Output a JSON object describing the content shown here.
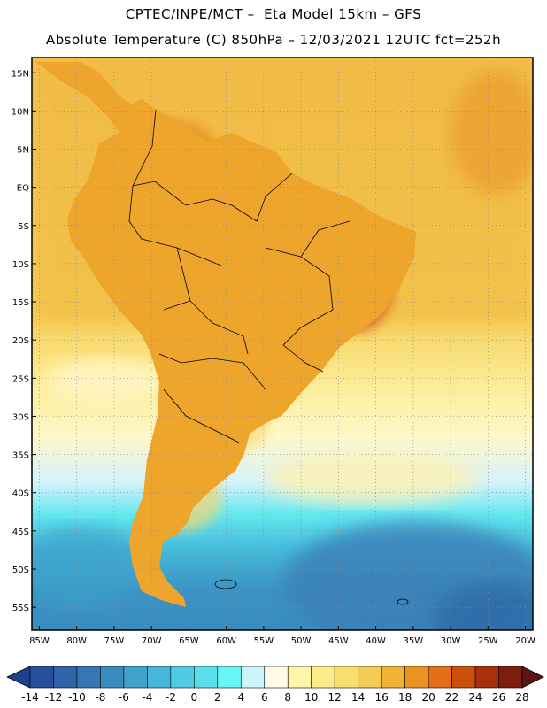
{
  "header": {
    "line1": "CPTEC/INPE/MCT –  Eta Model 15km – GFS",
    "line2": "Absolute Temperature (C) 850hPa – 12/03/2021 12UTC fct=252h"
  },
  "map": {
    "lon_range": [
      -86,
      -19
    ],
    "lat_range": [
      -58,
      17
    ],
    "lat_ticks": [
      "15N",
      "10N",
      "5N",
      "EQ",
      "5S",
      "10S",
      "15S",
      "20S",
      "25S",
      "30S",
      "35S",
      "40S",
      "45S",
      "50S",
      "55S"
    ],
    "lon_ticks": [
      "85W",
      "80W",
      "75W",
      "70W",
      "65W",
      "60W",
      "55W",
      "50W",
      "45W",
      "40W",
      "35W",
      "30W",
      "25W",
      "20W"
    ],
    "grid": true
  },
  "colorbar": {
    "labels": [
      "-14",
      "-12",
      "-10",
      "-8",
      "-6",
      "-4",
      "-2",
      "0",
      "2",
      "4",
      "6",
      "8",
      "10",
      "12",
      "14",
      "16",
      "18",
      "20",
      "22",
      "24",
      "26",
      "28"
    ],
    "colors": [
      "#1f3f8f",
      "#27529b",
      "#2f65a8",
      "#3677b3",
      "#3a8cbf",
      "#3ea2cb",
      "#46b7d8",
      "#4fcbe3",
      "#5adfe9",
      "#6af5f5",
      "#cdf3fb",
      "#fffbe6",
      "#fff6a9",
      "#fdeb8a",
      "#f8de6e",
      "#f4cc55",
      "#f0b334",
      "#ea9421",
      "#e37016",
      "#cc4f0d",
      "#a9300b",
      "#7d1e10",
      "#5e1710"
    ]
  }
}
